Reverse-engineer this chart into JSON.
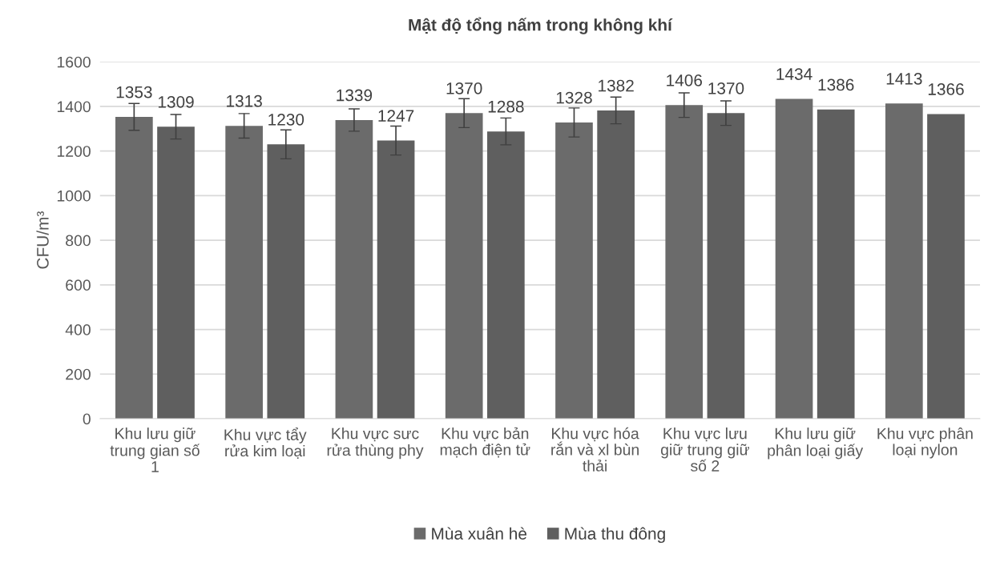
{
  "chart_data": {
    "type": "bar",
    "title": "Mật độ tổng nấm trong không khí",
    "ylabel": "CFU/m³",
    "categories": [
      "Khu lưu giữ trung gian số 1",
      "Khu vực tẩy rửa kim loại",
      "Khu vực sưc rửa thùng phy",
      "Khu vực bản mạch điện tử",
      "Khu vực hóa rắn và xl bùn thải",
      "Khu vực lưu giữ trung giữ số 2",
      "Khu lưu giữ phân loại giấy",
      "Khu vực phân loại nylon"
    ],
    "series": [
      {
        "name": "Mùa xuân hè",
        "color": "#6b6b6b",
        "values": [
          1353,
          1313,
          1339,
          1370,
          1328,
          1406,
          1434,
          1413
        ],
        "errors": [
          60,
          55,
          50,
          65,
          65,
          55,
          null,
          null
        ]
      },
      {
        "name": "Mùa thu đông",
        "color": "#5f5f5f",
        "values": [
          1309,
          1230,
          1247,
          1288,
          1382,
          1370,
          1386,
          1366
        ],
        "errors": [
          55,
          65,
          65,
          60,
          60,
          55,
          null,
          null
        ]
      }
    ],
    "ylim": [
      0,
      1600
    ],
    "yticks": [
      0,
      200,
      400,
      600,
      800,
      1000,
      1200,
      1400,
      1600
    ],
    "grid": "y",
    "legend": "bottom",
    "data_labels": true
  }
}
